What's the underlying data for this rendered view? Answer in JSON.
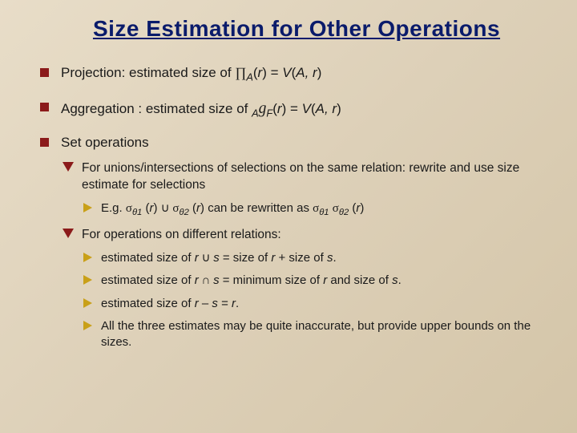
{
  "title": "Size Estimation for Other Operations",
  "bullets": {
    "b1_prefix": "Projection:  estimated size of ",
    "b1_expr": "∏",
    "b1_subA": "A",
    "b1_r": "(",
    "b1_r2": "r",
    "b1_eq": ")   =   ",
    "b1_V": "V",
    "b1_paren": "(",
    "b1_A2": "A, r",
    "b1_close": ")",
    "b2_prefix": "Aggregation : estimated size of ",
    "b2_subA": "A",
    "b2_g": "g",
    "b2_subF": "F",
    "b2_r": "(",
    "b2_r2": "r",
    "b2_eq": ")   = ",
    "b2_V": "V",
    "b2_paren": "(",
    "b2_A2": "A, r",
    "b2_close": ")",
    "b3": "Set operations"
  },
  "sub": {
    "s1": "For unions/intersections of selections on the same relation: rewrite and use size estimate for selections",
    "s1eg_pre": "E.g. ",
    "s1eg_sig1": "σ",
    "s1eg_th1": "θ1",
    "s1eg_r1": " (",
    "s1eg_r1i": "r",
    "s1eg_r1c": ") ",
    "s1eg_cup": "∪",
    "s1eg_sig2": " σ",
    "s1eg_th2": "θ2",
    "s1eg_r2": " (",
    "s1eg_r2i": "r",
    "s1eg_r2c": ")  can be rewritten as ",
    "s1eg_sig3": "σ",
    "s1eg_th3": "θ1",
    "s1eg_sp": " ",
    "s1eg_sig4": "σ",
    "s1eg_th4": "θ2",
    "s1eg_r3": " (",
    "s1eg_r3i": "r",
    "s1eg_r3c": ")",
    "s2": "For operations on different relations:",
    "ss1_pre": "estimated size of ",
    "ss1_r": "r",
    "ss1_op": " ∪ ",
    "ss1_s": "s",
    "ss1_eq": "  = size of ",
    "ss1_r2": "r",
    "ss1_plus": " + size of ",
    "ss1_s2": "s",
    "ss1_dot": ".",
    "ss2_pre": "estimated size of ",
    "ss2_r": "r",
    "ss2_op": " ∩ ",
    "ss2_s": "s",
    "ss2_eq": "  = minimum size of ",
    "ss2_r2": "r",
    "ss2_and": " and size of ",
    "ss2_s2": "s",
    "ss2_dot": ".",
    "ss3_pre": "estimated size of ",
    "ss3_r": "r",
    "ss3_op": " – ",
    "ss3_s": "s",
    "ss3_eq": "   = ",
    "ss3_r2": "r",
    "ss3_dot": ".",
    "ss4": "All the three estimates may be quite inaccurate, but provide upper bounds on the sizes."
  }
}
